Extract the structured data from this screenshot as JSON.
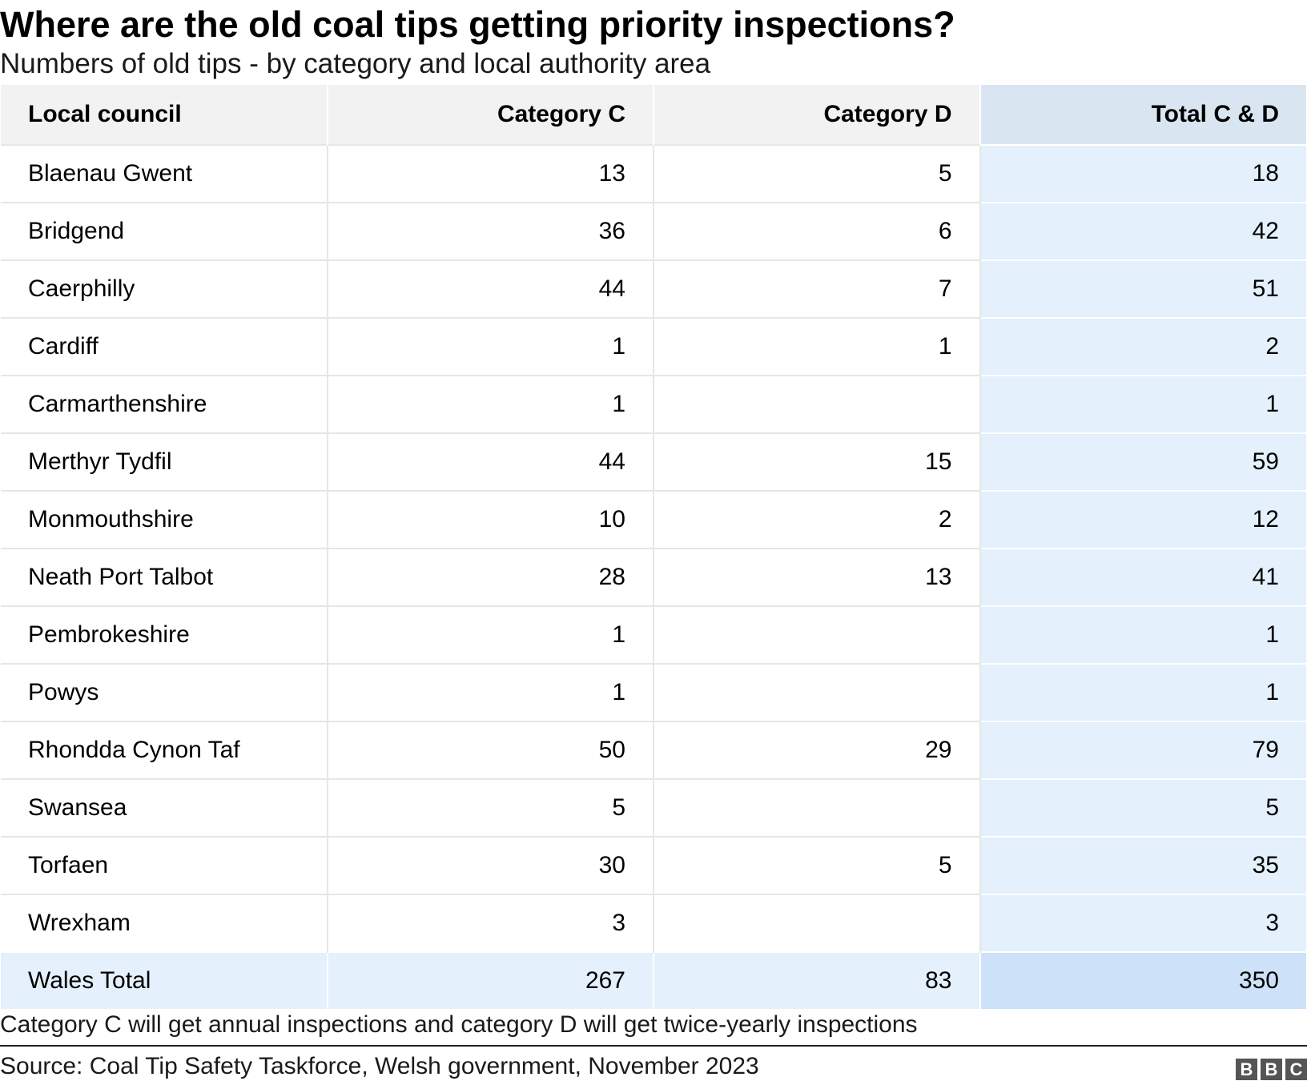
{
  "chart_data": {
    "type": "table",
    "title": "Where are the old coal tips getting priority inspections?",
    "subtitle": "Numbers of old tips - by category and local authority area",
    "columns": [
      "Local council",
      "Category C",
      "Category D",
      "Total C & D"
    ],
    "rows": [
      [
        "Blaenau Gwent",
        "13",
        "5",
        "18"
      ],
      [
        "Bridgend",
        "36",
        "6",
        "42"
      ],
      [
        "Caerphilly",
        "44",
        "7",
        "51"
      ],
      [
        "Cardiff",
        "1",
        "1",
        "2"
      ],
      [
        "Carmarthenshire",
        "1",
        "",
        "1"
      ],
      [
        "Merthyr Tydfil",
        "44",
        "15",
        "59"
      ],
      [
        "Monmouthshire",
        "10",
        "2",
        "12"
      ],
      [
        "Neath Port Talbot",
        "28",
        "13",
        "41"
      ],
      [
        "Pembrokeshire",
        "1",
        "",
        "1"
      ],
      [
        "Powys",
        "1",
        "",
        "1"
      ],
      [
        "Rhondda Cynon Taf",
        "50",
        "29",
        "79"
      ],
      [
        "Swansea",
        "5",
        "",
        "5"
      ],
      [
        "Torfaen",
        "30",
        "5",
        "35"
      ],
      [
        "Wrexham",
        "3",
        "",
        "3"
      ]
    ],
    "total_row": [
      "Wales Total",
      "267",
      "83",
      "350"
    ],
    "note": "Category C will get annual inspections and category D will get twice-yearly inspections",
    "source": "Source: Coal Tip Safety Taskforce, Welsh government, November 2023",
    "highlight_color": "#e4f0fb",
    "header_highlight_color": "#d9e6f2",
    "total_highlight_color": "#cde2f8"
  },
  "logo": {
    "letters": [
      "B",
      "B",
      "C"
    ]
  }
}
